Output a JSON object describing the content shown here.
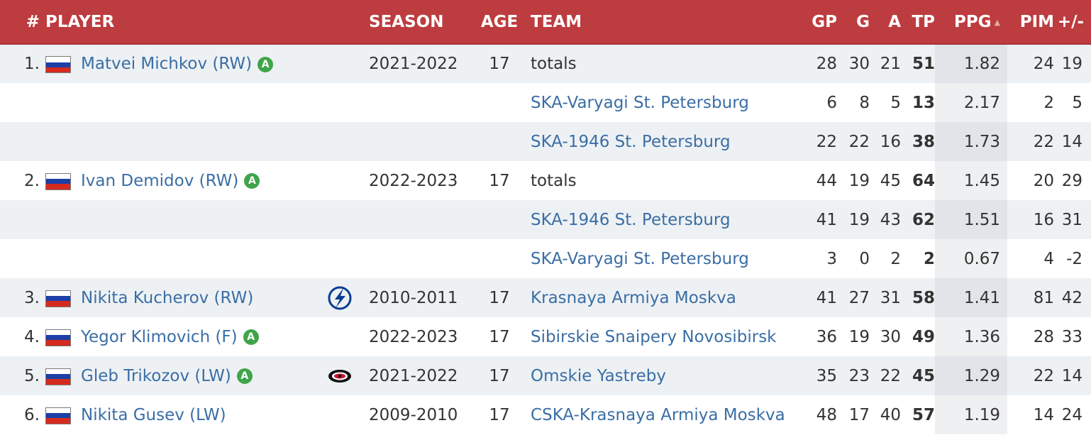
{
  "header": {
    "num": "#",
    "player": "PLAYER",
    "season": "SEASON",
    "age": "AGE",
    "team": "TEAM",
    "gp": "GP",
    "g": "G",
    "a": "A",
    "tp": "TP",
    "ppg": "PPG",
    "ppg_sort_icon": "sort-up-icon",
    "pim": "PIM",
    "pm": "+/-"
  },
  "colors": {
    "header_bg": "#bd3c3f",
    "link": "#3a6ea5",
    "badge_bg": "#3fa54a",
    "row_stripe": "#eef1f4"
  },
  "rows": [
    {
      "rank": "1.",
      "flag": "russia-flag",
      "player": "Matvei Michkov (RW)",
      "badge": "A",
      "logo": "",
      "season": "2021-2022",
      "age": "17",
      "team": "totals",
      "team_link": false,
      "gp": "28",
      "g": "30",
      "a": "21",
      "tp": "51",
      "ppg": "1.82",
      "pim": "24",
      "pm": "19"
    },
    {
      "rank": "",
      "flag": "",
      "player": "",
      "badge": "",
      "logo": "",
      "season": "",
      "age": "",
      "team": "SKA-Varyagi St. Petersburg",
      "team_link": true,
      "gp": "6",
      "g": "8",
      "a": "5",
      "tp": "13",
      "ppg": "2.17",
      "pim": "2",
      "pm": "5"
    },
    {
      "rank": "",
      "flag": "",
      "player": "",
      "badge": "",
      "logo": "",
      "season": "",
      "age": "",
      "team": "SKA-1946 St. Petersburg",
      "team_link": true,
      "gp": "22",
      "g": "22",
      "a": "16",
      "tp": "38",
      "ppg": "1.73",
      "pim": "22",
      "pm": "14"
    },
    {
      "rank": "2.",
      "flag": "russia-flag",
      "player": "Ivan Demidov (RW)",
      "badge": "A",
      "logo": "",
      "season": "2022-2023",
      "age": "17",
      "team": "totals",
      "team_link": false,
      "gp": "44",
      "g": "19",
      "a": "45",
      "tp": "64",
      "ppg": "1.45",
      "pim": "20",
      "pm": "29"
    },
    {
      "rank": "",
      "flag": "",
      "player": "",
      "badge": "",
      "logo": "",
      "season": "",
      "age": "",
      "team": "SKA-1946 St. Petersburg",
      "team_link": true,
      "gp": "41",
      "g": "19",
      "a": "43",
      "tp": "62",
      "ppg": "1.51",
      "pim": "16",
      "pm": "31"
    },
    {
      "rank": "",
      "flag": "",
      "player": "",
      "badge": "",
      "logo": "",
      "season": "",
      "age": "",
      "team": "SKA-Varyagi St. Petersburg",
      "team_link": true,
      "gp": "3",
      "g": "0",
      "a": "2",
      "tp": "2",
      "ppg": "0.67",
      "pim": "4",
      "pm": "-2"
    },
    {
      "rank": "3.",
      "flag": "russia-flag",
      "player": "Nikita Kucherov (RW)",
      "badge": "",
      "logo": "lightning-logo",
      "season": "2010-2011",
      "age": "17",
      "team": "Krasnaya Armiya Moskva",
      "team_link": true,
      "gp": "41",
      "g": "27",
      "a": "31",
      "tp": "58",
      "ppg": "1.41",
      "pim": "81",
      "pm": "42"
    },
    {
      "rank": "4.",
      "flag": "russia-flag",
      "player": "Yegor Klimovich (F)",
      "badge": "A",
      "logo": "",
      "season": "2022-2023",
      "age": "17",
      "team": "Sibirskie Snaipery Novosibirsk",
      "team_link": true,
      "gp": "36",
      "g": "19",
      "a": "30",
      "tp": "49",
      "ppg": "1.36",
      "pim": "28",
      "pm": "33"
    },
    {
      "rank": "5.",
      "flag": "russia-flag",
      "player": "Gleb Trikozov (LW)",
      "badge": "A",
      "logo": "hurricanes-logo",
      "season": "2021-2022",
      "age": "17",
      "team": "Omskie Yastreby",
      "team_link": true,
      "gp": "35",
      "g": "23",
      "a": "22",
      "tp": "45",
      "ppg": "1.29",
      "pim": "22",
      "pm": "14"
    },
    {
      "rank": "6.",
      "flag": "russia-flag",
      "player": "Nikita Gusev (LW)",
      "badge": "",
      "logo": "",
      "season": "2009-2010",
      "age": "17",
      "team": "CSKA-Krasnaya Armiya Moskva",
      "team_link": true,
      "gp": "48",
      "g": "17",
      "a": "40",
      "tp": "57",
      "ppg": "1.19",
      "pim": "14",
      "pm": "24"
    }
  ]
}
